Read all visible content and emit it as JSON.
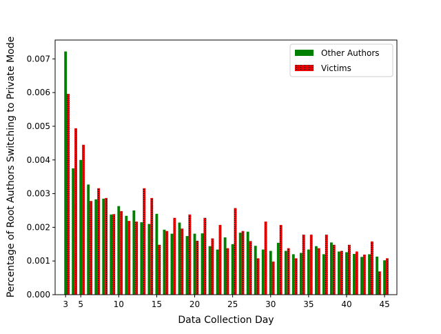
{
  "chart_data": {
    "type": "bar",
    "title": "",
    "xlabel": "Data Collection Day",
    "ylabel": "Percentage of Root Authors Switching to Private Mode",
    "xlim": [
      1.8,
      46.8
    ],
    "ylim": [
      0.0,
      0.00756
    ],
    "xticks": [
      3,
      5,
      10,
      15,
      20,
      25,
      30,
      35,
      40,
      45
    ],
    "yticks": [
      0.0,
      0.001,
      0.002,
      0.003,
      0.004,
      0.005,
      0.006,
      0.007
    ],
    "ytick_labels": [
      "0.000",
      "0.001",
      "0.002",
      "0.003",
      "0.004",
      "0.005",
      "0.006",
      "0.007"
    ],
    "legend_position": "upper right",
    "x": [
      3,
      4,
      5,
      6,
      7,
      8,
      9,
      10,
      11,
      12,
      13,
      14,
      15,
      16,
      17,
      18,
      19,
      20,
      21,
      22,
      23,
      24,
      25,
      26,
      27,
      28,
      29,
      30,
      31,
      32,
      33,
      34,
      35,
      36,
      37,
      38,
      39,
      40,
      41,
      42,
      43,
      44,
      45
    ],
    "series": [
      {
        "name": "Other Authors",
        "color": "#008000",
        "hatch": "none",
        "values": [
          0.00722,
          0.00375,
          0.004,
          0.00327,
          0.00283,
          0.00285,
          0.00238,
          0.00263,
          0.00234,
          0.0025,
          0.00215,
          0.0021,
          0.0024,
          0.00193,
          0.00181,
          0.00214,
          0.00174,
          0.00181,
          0.00182,
          0.00144,
          0.00134,
          0.0017,
          0.0015,
          0.00184,
          0.00187,
          0.00145,
          0.00134,
          0.0013,
          0.00154,
          0.0013,
          0.0012,
          0.00124,
          0.00134,
          0.00144,
          0.0012,
          0.00155,
          0.00128,
          0.00126,
          0.00121,
          0.00112,
          0.0012,
          0.00113,
          0.00102
        ]
      },
      {
        "name": "Victims",
        "color": "#ee0000",
        "hatch": "dotted",
        "values": [
          0.00596,
          0.00494,
          0.00445,
          0.00278,
          0.00316,
          0.00287,
          0.00239,
          0.00248,
          0.00219,
          0.00217,
          0.00316,
          0.00287,
          0.00148,
          0.00189,
          0.00228,
          0.00196,
          0.00238,
          0.0016,
          0.00228,
          0.00167,
          0.00207,
          0.00138,
          0.00257,
          0.00189,
          0.00159,
          0.00108,
          0.00217,
          0.00098,
          0.00207,
          0.00138,
          0.00108,
          0.00178,
          0.00178,
          0.00138,
          0.00178,
          0.00148,
          0.0013,
          0.00148,
          0.00128,
          0.00119,
          0.00158,
          0.00069,
          0.00108
        ]
      }
    ]
  }
}
